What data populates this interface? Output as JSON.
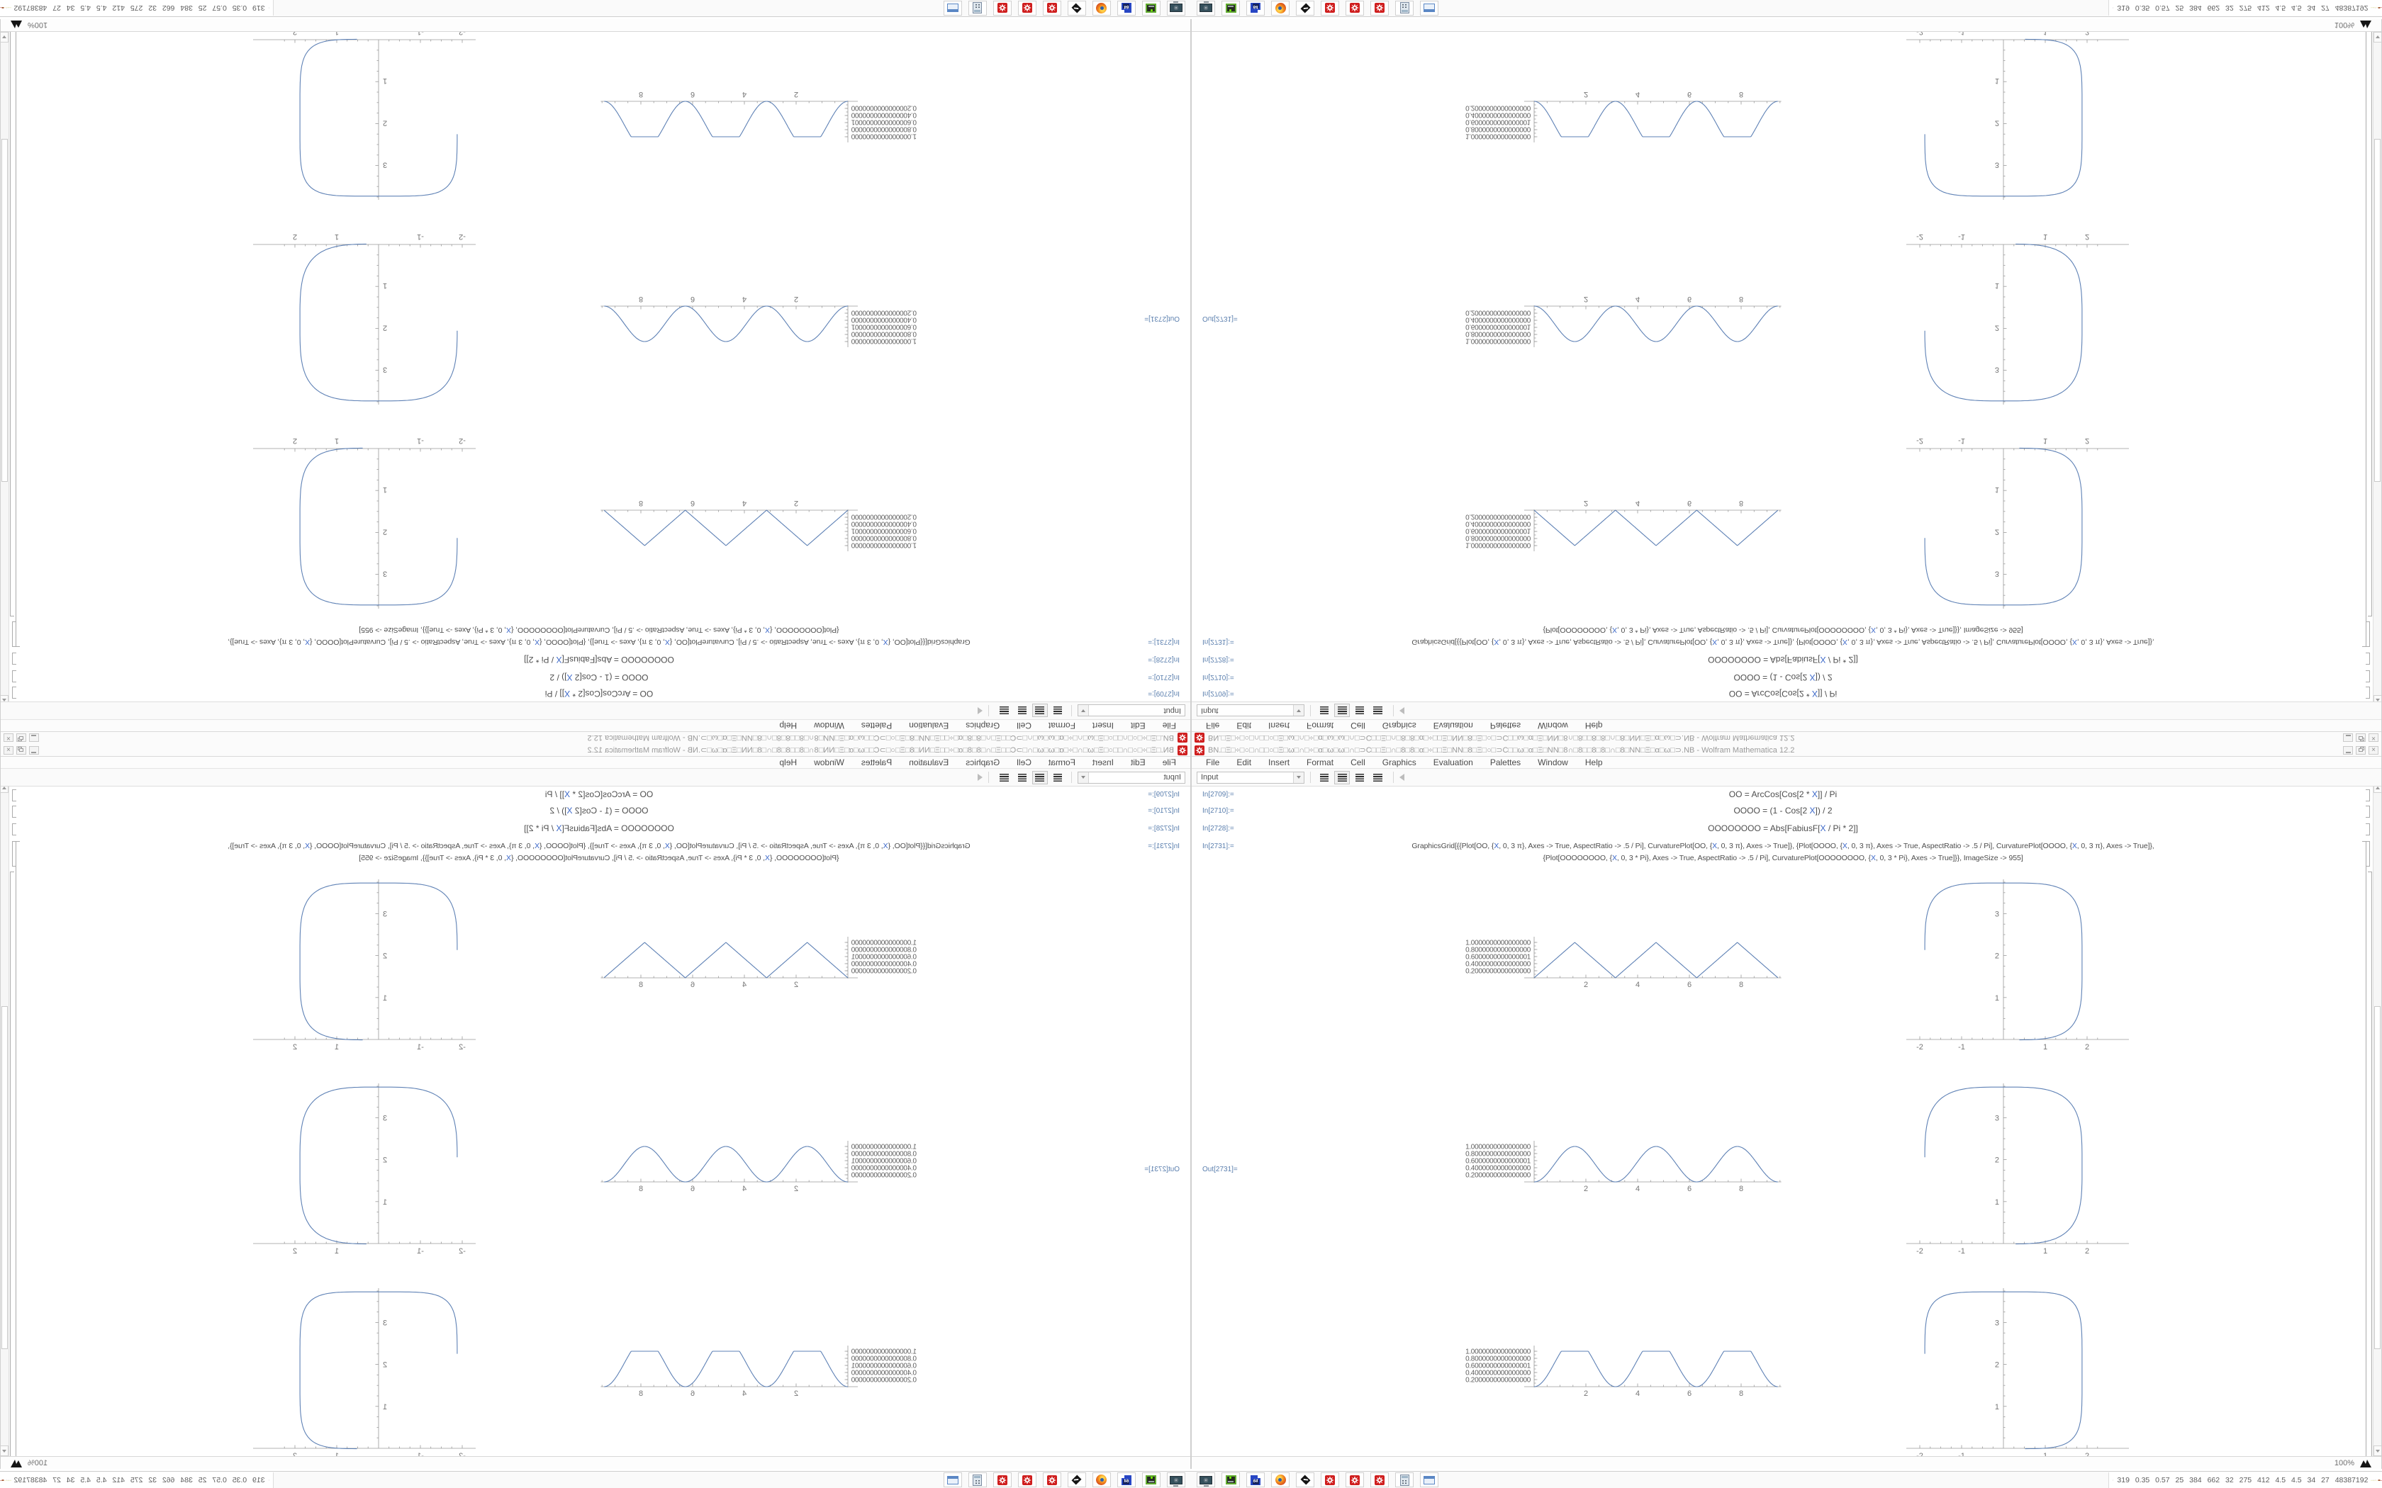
{
  "window": {
    "title": "BN.□Ξ□÷□○□∩□□○□Ξ□ω□∩□÷□α□ω□ω□∩□⊃C□□Ξ□∩□8□8□α□÷□□Ξ□NN□8□Ξ□○□⊃C□□ω□α□Ξ□NN□8∩□8□□8□8□∩□8□NN□Ξ□α□ω□⊃.NB - Wolfram Mathematica 12.2",
    "menu": {
      "items": [
        "File",
        "Edit",
        "Insert",
        "Format",
        "Cell",
        "Graphics",
        "Evaluation",
        "Palettes",
        "Window",
        "Help"
      ]
    },
    "toolbar": {
      "cell_style": "Input"
    },
    "status": {
      "zoom": "100%"
    },
    "cells": [
      {
        "label": "In[2709]:=",
        "lines": [
          "OO = ArcCos[Cos[2 * X]] / Pi"
        ]
      },
      {
        "label": "In[2710]:=",
        "lines": [
          "OOOO = (1 - Cos[2 X]) / 2"
        ]
      },
      {
        "label": "In[2728]:=",
        "lines": [
          "OOOOOOOO = Abs[FabiusF[X / Pi * 2]]"
        ]
      },
      {
        "label": "In[2731]:=",
        "lines": [
          "GraphicsGrid[{{Plot[OO, {X, 0, 3 π}, Axes -> True, AspectRatio -> .5 / Pi], CurvaturePlot[OO, {X, 0, 3 π}, Axes -> True]}, {Plot[OOOO, {X, 0, 3 π}, Axes -> True, AspectRatio -> .5 / Pi], CurvaturePlot[OOOO, {X, 0, 3 π}, Axes -> True]},",
          "{Plot[OOOOOOOO, {X, 0, 3 * Pi}, Axes -> True, AspectRatio -> .5 / Pi], CurvaturePlot[OOOOOOOO, {X, 0, 3 * Pi}, Axes -> True]}}, ImageSize -> 955]"
        ]
      }
    ],
    "out_label": "Out[2731]="
  },
  "taskbar": {
    "launchers": [
      "screenshot-tool",
      "disk-utility",
      "disk-imager-64",
      "firefox",
      "inkscape",
      "mathematica",
      "mathematica",
      "mathematica",
      "calculator",
      "file-manager"
    ],
    "floppy_label": "64",
    "tray": {
      "numbers": "319 0.35 0.57 25 384 662 32 275 412 4.5 4.5 34 27 48387192",
      "sparkline_colors": [
        "#e8d24a",
        "#49a24b",
        "#8c4a9e",
        "#a0522d",
        "#5f7a2a",
        "#c03028"
      ]
    }
  },
  "chart_data": [
    {
      "id": "row1-wave",
      "type": "line",
      "shape": "triangle",
      "series": "OO  (ArcCos[Cos[2X]]/Pi triangle wave)",
      "x_range_plotted": [
        0,
        9.4248
      ],
      "axis_x_end": 9.55,
      "x_ticks": [
        2,
        4,
        6,
        8
      ],
      "y_values_at_ticks": [
        1.0,
        0.8,
        0.6,
        0.4,
        0.2
      ],
      "y_tick_labels": [
        "1.0000000000000000",
        "0.8000000000000000",
        "0.6000000000000001",
        "0.4000000000000000",
        "0.2000000000000000"
      ],
      "color": "#5e81b5"
    },
    {
      "id": "row1-curvature",
      "type": "line",
      "shape": "rounded-square",
      "series": "CurvaturePlot[OO]",
      "x_ticks": [
        -2,
        -1,
        1,
        2
      ],
      "y_ticks": [
        1,
        2,
        3
      ],
      "a": 1.88,
      "b": 1.87,
      "cy": 1.86,
      "n": 4.2,
      "theta_start": 272,
      "theta_end": 540,
      "color": "#5e81b5"
    },
    {
      "id": "row2-wave",
      "type": "line",
      "shape": "sin2",
      "series": "OOOO  ((1-Cos[2X])/2 bumps)",
      "x_range_plotted": [
        0,
        9.4248
      ],
      "axis_x_end": 9.55,
      "x_ticks": [
        2,
        4,
        6,
        8
      ],
      "y_values_at_ticks": [
        1.0,
        0.8,
        0.6,
        0.4,
        0.2
      ],
      "y_tick_labels": [
        "1.0000000000000000",
        "0.8000000000000000",
        "0.6000000000000001",
        "0.4000000000000000",
        "0.2000000000000000"
      ],
      "color": "#5e81b5"
    },
    {
      "id": "row2-curvature",
      "type": "line",
      "shape": "rounded-square",
      "series": "CurvaturePlot[OOOO]",
      "x_ticks": [
        -2,
        -1,
        1,
        2
      ],
      "y_ticks": [
        1,
        2,
        3
      ],
      "a": 1.88,
      "b": 1.87,
      "cy": 1.86,
      "n": 3.6,
      "theta_start": 272,
      "theta_end": 540,
      "color": "#5e81b5"
    },
    {
      "id": "row3-wave",
      "type": "line",
      "shape": "fabius",
      "series": "OOOOOOOO  (Abs[FabiusF[X/Pi*2]] flat-top bumps)",
      "x_range_plotted": [
        0,
        9.4248
      ],
      "axis_x_end": 9.55,
      "x_ticks": [
        2,
        4,
        6,
        8
      ],
      "y_values_at_ticks": [
        1.0,
        0.8,
        0.6,
        0.4,
        0.2
      ],
      "y_tick_labels": [
        "1.0000000000000000",
        "0.8000000000000000",
        "0.6000000000000001",
        "0.4000000000000000",
        "0.2000000000000000"
      ],
      "color": "#5e81b5"
    },
    {
      "id": "row3-curvature",
      "type": "line",
      "shape": "rounded-square",
      "series": "CurvaturePlot[OOOOOOOO]",
      "x_ticks": [
        -2,
        -1,
        1,
        2
      ],
      "y_ticks": [
        1,
        2,
        3
      ],
      "a": 1.88,
      "b": 1.87,
      "cy": 1.86,
      "n": 5.2,
      "theta_start": 272,
      "theta_end": 540,
      "color": "#5e81b5"
    }
  ]
}
